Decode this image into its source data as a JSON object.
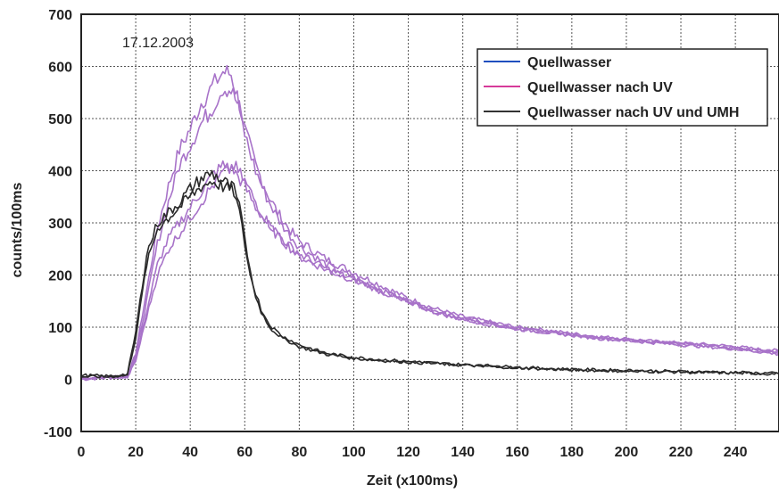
{
  "chart_data": {
    "type": "line",
    "title": "",
    "annotation": "17.12.2003",
    "xlabel": "Zeit (x100ms)",
    "ylabel": "counts/100ms",
    "xlim": [
      0,
      256
    ],
    "ylim": [
      -100,
      700
    ],
    "xticks": [
      0,
      20,
      40,
      60,
      80,
      100,
      120,
      140,
      160,
      180,
      200,
      220,
      240
    ],
    "yticks": [
      -100,
      0,
      100,
      200,
      300,
      400,
      500,
      600,
      700
    ],
    "grid": true,
    "legend_position": "top-right",
    "legend": [
      {
        "name": "Quellwasser",
        "color": "#1f4fbf"
      },
      {
        "name": "Quellwasser nach UV",
        "color": "#d63a9a"
      },
      {
        "name": "Quellwasser nach UV und UMH",
        "color": "#333333"
      }
    ],
    "series": [
      {
        "legend_index": 1,
        "color": "#a873c9",
        "x": [
          0,
          10,
          17,
          20,
          24,
          28,
          32,
          36,
          40,
          44,
          48,
          50,
          52,
          55,
          58,
          60,
          64,
          68,
          72,
          76,
          80,
          90,
          100,
          110,
          120,
          130,
          140,
          150,
          160,
          170,
          180,
          190,
          200,
          210,
          220,
          230,
          240,
          250,
          256
        ],
        "y": [
          0,
          3,
          5,
          50,
          170,
          290,
          370,
          440,
          480,
          530,
          560,
          575,
          590,
          585,
          530,
          480,
          410,
          360,
          320,
          290,
          265,
          230,
          205,
          180,
          155,
          135,
          120,
          110,
          100,
          95,
          88,
          82,
          78,
          73,
          70,
          67,
          63,
          57,
          55
        ]
      },
      {
        "legend_index": 1,
        "color": "#a873c9",
        "x": [
          0,
          10,
          17,
          20,
          24,
          28,
          32,
          36,
          40,
          44,
          48,
          50,
          52,
          55,
          58,
          60,
          64,
          68,
          72,
          76,
          80,
          90,
          100,
          110,
          120,
          130,
          140,
          150,
          160,
          170,
          180,
          190,
          200,
          210,
          220,
          230,
          240,
          250,
          256
        ],
        "y": [
          2,
          5,
          5,
          45,
          150,
          260,
          340,
          410,
          450,
          490,
          520,
          540,
          560,
          555,
          520,
          470,
          400,
          350,
          310,
          280,
          255,
          220,
          195,
          170,
          150,
          130,
          115,
          105,
          97,
          90,
          85,
          80,
          75,
          72,
          68,
          65,
          60,
          55,
          50
        ]
      },
      {
        "legend_index": 1,
        "color": "#a873c9",
        "x": [
          0,
          10,
          17,
          20,
          24,
          28,
          32,
          36,
          40,
          44,
          48,
          52,
          56,
          60,
          64,
          68,
          72,
          76,
          80,
          90,
          100,
          110,
          120,
          130,
          140,
          150,
          160,
          170,
          180,
          190,
          200,
          210,
          220,
          230,
          240,
          250,
          256
        ],
        "y": [
          3,
          5,
          5,
          40,
          130,
          220,
          270,
          300,
          330,
          360,
          390,
          410,
          400,
          370,
          330,
          300,
          275,
          255,
          235,
          210,
          190,
          170,
          150,
          130,
          118,
          108,
          98,
          92,
          86,
          80,
          76,
          72,
          68,
          64,
          60,
          55,
          52
        ]
      },
      {
        "legend_index": 1,
        "color": "#a873c9",
        "x": [
          0,
          10,
          17,
          20,
          24,
          28,
          32,
          36,
          40,
          44,
          48,
          52,
          56,
          60,
          64,
          68,
          72,
          76,
          80,
          90,
          100,
          110,
          120,
          130,
          140,
          150,
          160,
          170,
          180,
          190,
          200,
          210,
          220,
          230,
          240,
          250,
          256
        ],
        "y": [
          1,
          4,
          4,
          35,
          120,
          200,
          250,
          280,
          310,
          340,
          370,
          395,
          410,
          380,
          340,
          305,
          280,
          258,
          240,
          212,
          192,
          168,
          148,
          128,
          115,
          105,
          96,
          90,
          84,
          78,
          74,
          70,
          66,
          62,
          58,
          52,
          48
        ]
      },
      {
        "legend_index": 2,
        "color": "#2a2a2a",
        "x": [
          0,
          10,
          17,
          20,
          24,
          28,
          32,
          36,
          40,
          44,
          48,
          52,
          56,
          58,
          60,
          62,
          64,
          66,
          68,
          70,
          74,
          78,
          80,
          85,
          90,
          100,
          110,
          120,
          130,
          140,
          150,
          160,
          170,
          180,
          190,
          200,
          210,
          220,
          230,
          240,
          250,
          256
        ],
        "y": [
          5,
          5,
          8,
          80,
          220,
          290,
          310,
          330,
          350,
          370,
          380,
          370,
          360,
          320,
          260,
          200,
          160,
          130,
          110,
          95,
          78,
          68,
          62,
          55,
          48,
          40,
          36,
          33,
          30,
          27,
          25,
          22,
          20,
          18,
          17,
          16,
          15,
          14,
          13,
          12,
          11,
          10
        ]
      },
      {
        "legend_index": 2,
        "color": "#2a2a2a",
        "x": [
          0,
          10,
          17,
          20,
          24,
          28,
          32,
          36,
          40,
          44,
          48,
          52,
          56,
          58,
          60,
          62,
          64,
          66,
          68,
          70,
          74,
          78,
          80,
          85,
          90,
          100,
          110,
          120,
          130,
          140,
          150,
          160,
          170,
          180,
          190,
          200,
          210,
          220,
          230,
          240,
          250,
          256
        ],
        "y": [
          8,
          6,
          10,
          90,
          240,
          300,
          320,
          340,
          365,
          385,
          395,
          380,
          365,
          330,
          270,
          210,
          165,
          135,
          115,
          100,
          82,
          72,
          66,
          58,
          50,
          42,
          38,
          34,
          31,
          28,
          26,
          23,
          21,
          19,
          18,
          17,
          16,
          15,
          14,
          13,
          12,
          11
        ]
      }
    ]
  }
}
